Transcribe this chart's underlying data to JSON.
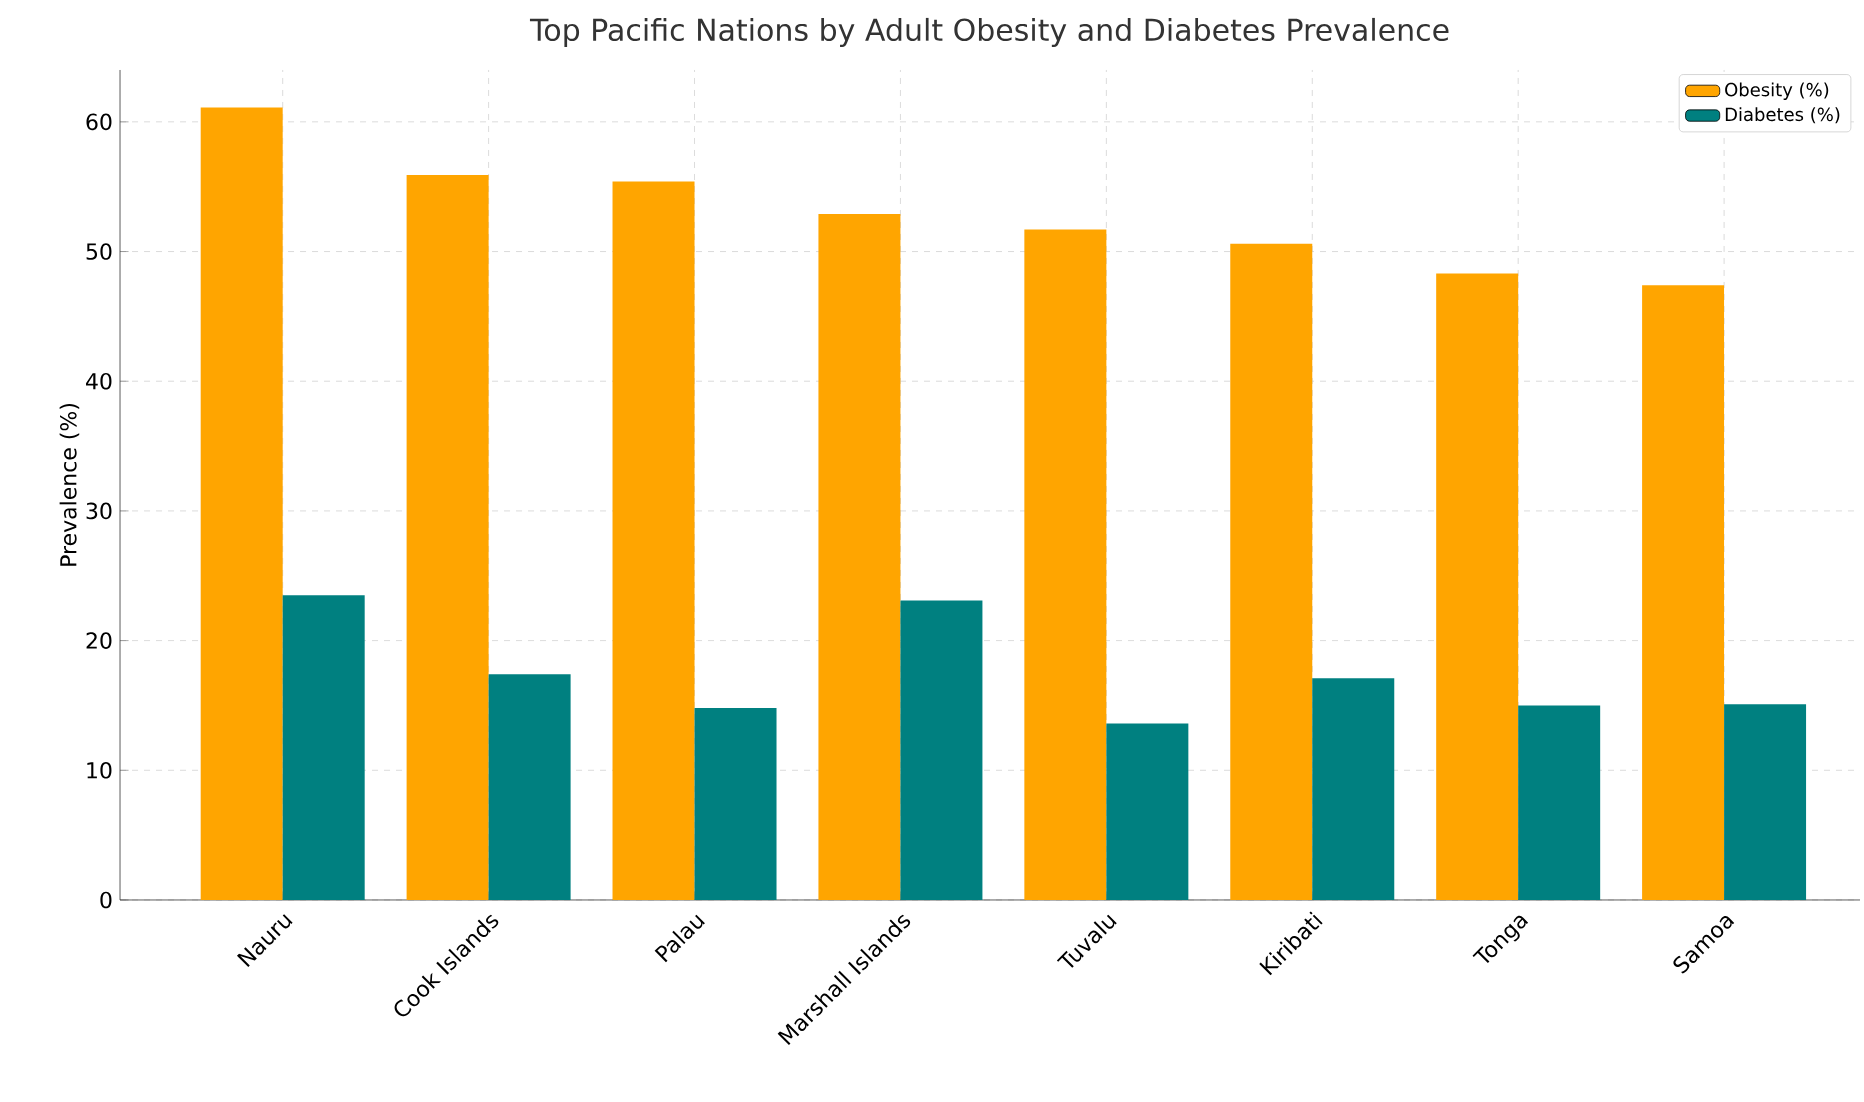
{
  "chart_data": {
    "type": "bar",
    "title": "Top Pacific Nations by Adult Obesity and Diabetes Prevalence",
    "ylabel": "Prevalence (%)",
    "categories": [
      "Nauru",
      "Cook Islands",
      "Palau",
      "Marshall Islands",
      "Tuvalu",
      "Kiribati",
      "Tonga",
      "Samoa"
    ],
    "series": [
      {
        "name": "Obesity (%)",
        "color": "#ffa500",
        "values": [
          61.1,
          55.9,
          55.4,
          52.9,
          51.7,
          50.6,
          48.3,
          47.4
        ]
      },
      {
        "name": "Diabetes (%)",
        "color": "#008080",
        "values": [
          23.5,
          17.4,
          14.8,
          23.1,
          13.6,
          17.1,
          15.0,
          15.1
        ]
      }
    ],
    "ylim": [
      0,
      64
    ],
    "yticks": [
      0,
      10,
      20,
      30,
      40,
      50,
      60
    ],
    "grid": true,
    "legend": "top right"
  }
}
